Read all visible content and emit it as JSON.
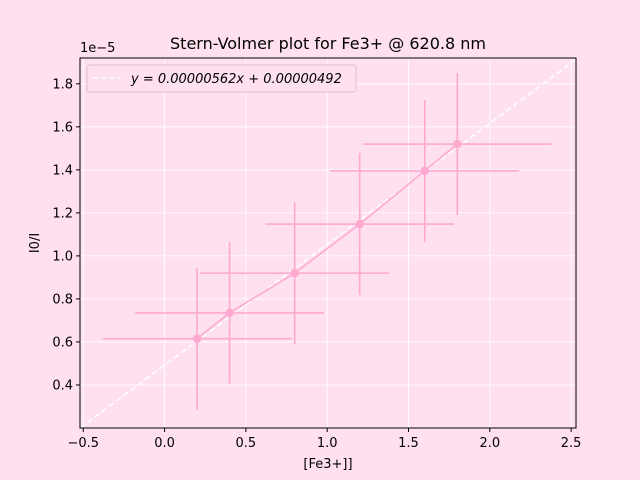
{
  "chart_data": {
    "type": "scatter",
    "title": "Stern-Volmer plot for Fe3+ @ 620.8 nm",
    "xlabel": "[Fe3+]]",
    "ylabel": "I0/I",
    "y_offset_label": "1e−5",
    "xlim": [
      -0.52,
      2.53
    ],
    "ylim": [
      0.2,
      1.92
    ],
    "x_ticks": [
      -0.5,
      0.0,
      0.5,
      1.0,
      1.5,
      2.0,
      2.5
    ],
    "x_tick_labels": [
      "−0.5",
      "0.0",
      "0.5",
      "1.0",
      "1.5",
      "2.0",
      "2.5"
    ],
    "y_ticks": [
      0.4,
      0.6,
      0.8,
      1.0,
      1.2,
      1.4,
      1.6,
      1.8
    ],
    "y_tick_labels": [
      "0.4",
      "0.6",
      "0.8",
      "1.0",
      "1.2",
      "1.4",
      "1.6",
      "1.8"
    ],
    "grid": true,
    "legend_position": "top-left",
    "series": [
      {
        "type": "errorbar",
        "color": "#ffa8d0",
        "x": [
          0.2,
          0.4,
          0.8,
          1.2,
          1.6,
          1.8
        ],
        "y": [
          0.615,
          0.735,
          0.92,
          1.148,
          1.395,
          1.52
        ],
        "xerr": [
          0.58,
          0.58,
          0.58,
          0.58,
          0.58,
          0.58
        ],
        "yerr": [
          0.33,
          0.33,
          0.33,
          0.33,
          0.33,
          0.33
        ]
      },
      {
        "type": "fit-line",
        "name": "y = 0.00000562x + 0.00000492",
        "color": "#ffffff",
        "dashed": true,
        "slope": 0.562,
        "intercept": 0.492
      }
    ]
  }
}
